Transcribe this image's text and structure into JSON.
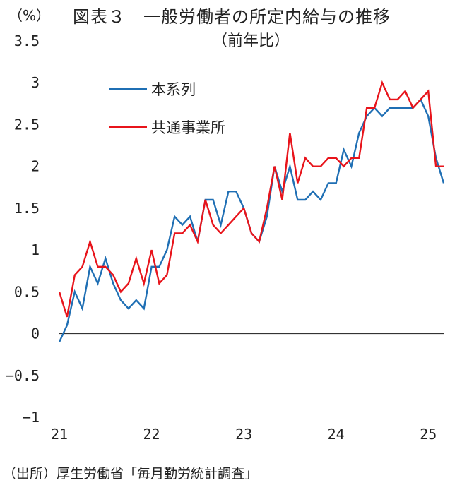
{
  "chart_data": {
    "type": "line",
    "title": "図表３　一般労働者の所定内給与の推移",
    "subtitle": "（前年比）",
    "ylabel": "（%）",
    "xlabel": "",
    "source": "（出所）厚生労働省「毎月勤労統計調査」",
    "ylim": [
      -1,
      3.5
    ],
    "yticks": [
      -1,
      -0.5,
      0,
      0.5,
      1,
      1.5,
      2,
      2.5,
      3,
      3.5
    ],
    "ytick_labels": [
      "−1",
      "−0.5",
      "0",
      "0.5",
      "1",
      "1.5",
      "2",
      "2.5",
      "3",
      "3.5"
    ],
    "xticks": [
      {
        "pos": 0,
        "label": "21"
      },
      {
        "pos": 12,
        "label": "22"
      },
      {
        "pos": 24,
        "label": "23"
      },
      {
        "pos": 36,
        "label": "24"
      },
      {
        "pos": 48,
        "label": "25"
      }
    ],
    "xlim": [
      0,
      50
    ],
    "zero_line": true,
    "legend": "upper-left",
    "series": [
      {
        "name": "本系列",
        "color": "#1f6fb4",
        "values": [
          -0.1,
          0.1,
          0.5,
          0.3,
          0.8,
          0.6,
          0.9,
          0.6,
          0.4,
          0.3,
          0.4,
          0.3,
          0.8,
          0.8,
          1.0,
          1.4,
          1.3,
          1.4,
          1.1,
          1.6,
          1.6,
          1.3,
          1.7,
          1.7,
          1.5,
          1.2,
          1.1,
          1.4,
          2.0,
          1.7,
          2.0,
          1.6,
          1.6,
          1.7,
          1.6,
          1.8,
          1.8,
          2.2,
          2.0,
          2.4,
          2.6,
          2.7,
          2.6,
          2.7,
          2.7,
          2.7,
          2.7,
          2.8,
          2.6,
          2.1,
          1.8
        ]
      },
      {
        "name": "共通事業所",
        "color": "#e8141b",
        "values": [
          0.5,
          0.2,
          0.7,
          0.8,
          1.1,
          0.8,
          0.8,
          0.7,
          0.5,
          0.6,
          0.9,
          0.6,
          1.0,
          0.6,
          0.7,
          1.2,
          1.2,
          1.3,
          1.1,
          1.6,
          1.3,
          1.2,
          1.3,
          1.4,
          1.5,
          1.2,
          1.1,
          1.5,
          2.0,
          1.6,
          2.4,
          1.8,
          2.1,
          2.0,
          2.0,
          2.1,
          2.1,
          2.0,
          2.1,
          2.1,
          2.7,
          2.7,
          3.0,
          2.8,
          2.8,
          2.9,
          2.7,
          2.8,
          2.9,
          2.0,
          2.0
        ]
      }
    ]
  }
}
